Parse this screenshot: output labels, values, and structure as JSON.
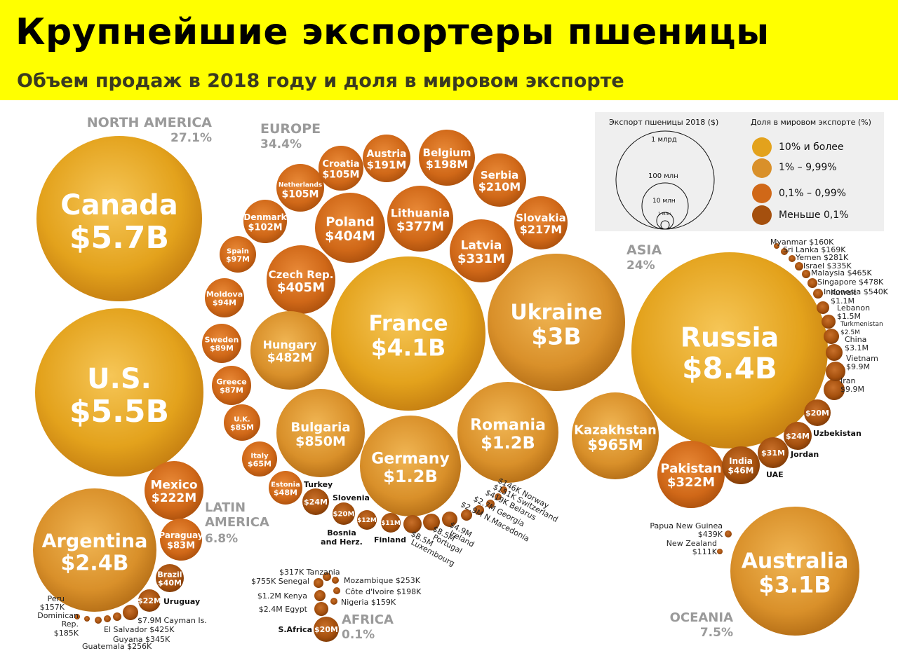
{
  "header": {
    "title": "Крупнейшие экспортеры пшеницы",
    "subtitle": "Объем продаж в 2018 году и доля в мировом экспорте"
  },
  "legend": {
    "size_title": "Экспорт пшеницы 2018 ($)",
    "size_items": [
      "1 млрд",
      "100 млн",
      "10 млн",
      "1 млн"
    ],
    "share_title": "Доля в мировом экспорте (%)",
    "share_items": [
      {
        "label": "10% и более",
        "color": "#e3a21c"
      },
      {
        "label": "1% – 9,99%",
        "color": "#d9902a"
      },
      {
        "label": "0,1% – 0,99%",
        "color": "#d06818"
      },
      {
        "label": "Меньше 0,1%",
        "color": "#a5500e"
      }
    ]
  },
  "colors": {
    "header_bg": "#ffff00",
    "gold": "#e3a21c",
    "amber": "#d9902a",
    "orange": "#d06818",
    "brown": "#a5500e"
  },
  "chart_data": {
    "type": "bubble",
    "title": "Крупнейшие экспортеры пшеницы",
    "subtitle": "Объем продаж в 2018 году и доля в мировом экспорте",
    "regions": [
      {
        "name": "NORTH AMERICA",
        "share": "27.1%"
      },
      {
        "name": "EUROPE",
        "share": "34.4%"
      },
      {
        "name": "ASIA",
        "share": "24%"
      },
      {
        "name": "LATIN AMERICA",
        "share": "6.8%"
      },
      {
        "name": "AFRICA",
        "share": "0.1%"
      },
      {
        "name": "OCEANIA",
        "share": "7.5%"
      }
    ],
    "countries": [
      {
        "name": "Canada",
        "value": "$5.7B",
        "region": "NORTH AMERICA",
        "tier": "gold"
      },
      {
        "name": "U.S.",
        "value": "$5.5B",
        "region": "NORTH AMERICA",
        "tier": "gold"
      },
      {
        "name": "Mexico",
        "value": "$222M",
        "region": "LATIN AMERICA",
        "tier": "orange"
      },
      {
        "name": "Argentina",
        "value": "$2.4B",
        "region": "LATIN AMERICA",
        "tier": "amber"
      },
      {
        "name": "Paraguay",
        "value": "$83M",
        "region": "LATIN AMERICA",
        "tier": "orange"
      },
      {
        "name": "Brazil",
        "value": "$40M",
        "region": "LATIN AMERICA",
        "tier": "brown"
      },
      {
        "name": "Uruguay",
        "value": "$22M",
        "region": "LATIN AMERICA",
        "tier": "brown"
      },
      {
        "name": "Cayman Is.",
        "value": "$7.9M",
        "region": "LATIN AMERICA",
        "tier": "brown"
      },
      {
        "name": "El Salvador",
        "value": "$425K",
        "region": "LATIN AMERICA",
        "tier": "brown"
      },
      {
        "name": "Guyana",
        "value": "$345K",
        "region": "LATIN AMERICA",
        "tier": "brown"
      },
      {
        "name": "Guatemala",
        "value": "$256K",
        "region": "LATIN AMERICA",
        "tier": "brown"
      },
      {
        "name": "Dominican Rep.",
        "value": "$185K",
        "region": "LATIN AMERICA",
        "tier": "brown"
      },
      {
        "name": "Peru",
        "value": "$157K",
        "region": "LATIN AMERICA",
        "tier": "brown"
      },
      {
        "name": "Croatia",
        "value": "$105M",
        "region": "EUROPE",
        "tier": "orange"
      },
      {
        "name": "Austria",
        "value": "$191M",
        "region": "EUROPE",
        "tier": "orange"
      },
      {
        "name": "Belgium",
        "value": "$198M",
        "region": "EUROPE",
        "tier": "orange"
      },
      {
        "name": "Netherlands",
        "value": "$105M",
        "region": "EUROPE",
        "tier": "orange"
      },
      {
        "name": "Serbia",
        "value": "$210M",
        "region": "EUROPE",
        "tier": "orange"
      },
      {
        "name": "Denmark",
        "value": "$102M",
        "region": "EUROPE",
        "tier": "orange"
      },
      {
        "name": "Poland",
        "value": "$404M",
        "region": "EUROPE",
        "tier": "orange"
      },
      {
        "name": "Lithuania",
        "value": "$377M",
        "region": "EUROPE",
        "tier": "orange"
      },
      {
        "name": "Slovakia",
        "value": "$217M",
        "region": "EUROPE",
        "tier": "orange"
      },
      {
        "name": "Spain",
        "value": "$97M",
        "region": "EUROPE",
        "tier": "orange"
      },
      {
        "name": "Latvia",
        "value": "$331M",
        "region": "EUROPE",
        "tier": "orange"
      },
      {
        "name": "Czech Rep.",
        "value": "$405M",
        "region": "EUROPE",
        "tier": "orange"
      },
      {
        "name": "Moldova",
        "value": "$94M",
        "region": "EUROPE",
        "tier": "orange"
      },
      {
        "name": "France",
        "value": "$4.1B",
        "region": "EUROPE",
        "tier": "gold"
      },
      {
        "name": "Ukraine",
        "value": "$3B",
        "region": "EUROPE",
        "tier": "amber"
      },
      {
        "name": "Sweden",
        "value": "$89M",
        "region": "EUROPE",
        "tier": "orange"
      },
      {
        "name": "Hungary",
        "value": "$482M",
        "region": "EUROPE",
        "tier": "amber"
      },
      {
        "name": "Greece",
        "value": "$87M",
        "region": "EUROPE",
        "tier": "orange"
      },
      {
        "name": "U.K.",
        "value": "$85M",
        "region": "EUROPE",
        "tier": "orange"
      },
      {
        "name": "Bulgaria",
        "value": "$850M",
        "region": "EUROPE",
        "tier": "amber"
      },
      {
        "name": "Romania",
        "value": "$1.2B",
        "region": "EUROPE",
        "tier": "amber"
      },
      {
        "name": "Italy",
        "value": "$65M",
        "region": "EUROPE",
        "tier": "orange"
      },
      {
        "name": "Germany",
        "value": "$1.2B",
        "region": "EUROPE",
        "tier": "amber"
      },
      {
        "name": "Estonia",
        "value": "$48M",
        "region": "EUROPE",
        "tier": "orange"
      },
      {
        "name": "Turkey",
        "value": "$24M",
        "region": "EUROPE",
        "tier": "brown"
      },
      {
        "name": "Slovenia",
        "value": "$20M",
        "region": "EUROPE",
        "tier": "brown"
      },
      {
        "name": "Bosnia and Herz.",
        "value": "$12M",
        "region": "EUROPE",
        "tier": "brown"
      },
      {
        "name": "Finland",
        "value": "$11M",
        "region": "EUROPE",
        "tier": "brown"
      },
      {
        "name": "Luxembourg",
        "value": "$8.5M",
        "region": "EUROPE",
        "tier": "brown"
      },
      {
        "name": "Portugal",
        "value": "$8.5M",
        "region": "EUROPE",
        "tier": "brown"
      },
      {
        "name": "Ireland",
        "value": "$4.9M",
        "region": "EUROPE",
        "tier": "brown"
      },
      {
        "name": "N.Macedonia",
        "value": "$2.9M",
        "region": "EUROPE",
        "tier": "brown"
      },
      {
        "name": "Georgia",
        "value": "$2.7M",
        "region": "EUROPE",
        "tier": "brown"
      },
      {
        "name": "Belarus",
        "value": "$419K",
        "region": "EUROPE",
        "tier": "brown"
      },
      {
        "name": "Switzerland",
        "value": "$151K",
        "region": "EUROPE",
        "tier": "brown"
      },
      {
        "name": "Norway",
        "value": "$146K",
        "region": "EUROPE",
        "tier": "brown"
      },
      {
        "name": "Russia",
        "value": "$8.4B",
        "region": "ASIA",
        "tier": "gold"
      },
      {
        "name": "Kazakhstan",
        "value": "$965M",
        "region": "ASIA",
        "tier": "amber"
      },
      {
        "name": "Pakistan",
        "value": "$322M",
        "region": "ASIA",
        "tier": "orange"
      },
      {
        "name": "India",
        "value": "$46M",
        "region": "ASIA",
        "tier": "brown"
      },
      {
        "name": "UAE",
        "value": "$31M",
        "region": "ASIA",
        "tier": "brown"
      },
      {
        "name": "Jordan",
        "value": "$24M",
        "region": "ASIA",
        "tier": "brown"
      },
      {
        "name": "Uzbekistan",
        "value": "$20M",
        "region": "ASIA",
        "tier": "brown"
      },
      {
        "name": "Iran",
        "value": "$9.9M",
        "region": "ASIA",
        "tier": "brown"
      },
      {
        "name": "Vietnam",
        "value": "$9.9M",
        "region": "ASIA",
        "tier": "brown"
      },
      {
        "name": "China",
        "value": "$3.1M",
        "region": "ASIA",
        "tier": "brown"
      },
      {
        "name": "Turkmenistan",
        "value": "$2.5M",
        "region": "ASIA",
        "tier": "brown"
      },
      {
        "name": "Lebanon",
        "value": "$1.5M",
        "region": "ASIA",
        "tier": "brown"
      },
      {
        "name": "Kuwait",
        "value": "$1.1M",
        "region": "ASIA",
        "tier": "brown"
      },
      {
        "name": "Indonesia",
        "value": "$540K",
        "region": "ASIA",
        "tier": "brown"
      },
      {
        "name": "Singapore",
        "value": "$478K",
        "region": "ASIA",
        "tier": "brown"
      },
      {
        "name": "Malaysia",
        "value": "$465K",
        "region": "ASIA",
        "tier": "brown"
      },
      {
        "name": "Israel",
        "value": "$335K",
        "region": "ASIA",
        "tier": "brown"
      },
      {
        "name": "Yemen",
        "value": "$281K",
        "region": "ASIA",
        "tier": "brown"
      },
      {
        "name": "Sri Lanka",
        "value": "$169K",
        "region": "ASIA",
        "tier": "brown"
      },
      {
        "name": "Myanmar",
        "value": "$160K",
        "region": "ASIA",
        "tier": "brown"
      },
      {
        "name": "S.Africa",
        "value": "$20M",
        "region": "AFRICA",
        "tier": "brown"
      },
      {
        "name": "Egypt",
        "value": "$2.4M",
        "region": "AFRICA",
        "tier": "brown"
      },
      {
        "name": "Kenya",
        "value": "$1.2M",
        "region": "AFRICA",
        "tier": "brown"
      },
      {
        "name": "Senegal",
        "value": "$755K",
        "region": "AFRICA",
        "tier": "brown"
      },
      {
        "name": "Tanzania",
        "value": "$317K",
        "region": "AFRICA",
        "tier": "brown"
      },
      {
        "name": "Mozambique",
        "value": "$253K",
        "region": "AFRICA",
        "tier": "brown"
      },
      {
        "name": "Côte d'Ivoire",
        "value": "$198K",
        "region": "AFRICA",
        "tier": "brown"
      },
      {
        "name": "Nigeria",
        "value": "$159K",
        "region": "AFRICA",
        "tier": "brown"
      },
      {
        "name": "Australia",
        "value": "$3.1B",
        "region": "OCEANIA",
        "tier": "amber"
      },
      {
        "name": "Papua New Guinea",
        "value": "$439K",
        "region": "OCEANIA",
        "tier": "brown"
      },
      {
        "name": "New Zealand",
        "value": "$111K",
        "region": "OCEANIA",
        "tier": "brown"
      }
    ]
  }
}
